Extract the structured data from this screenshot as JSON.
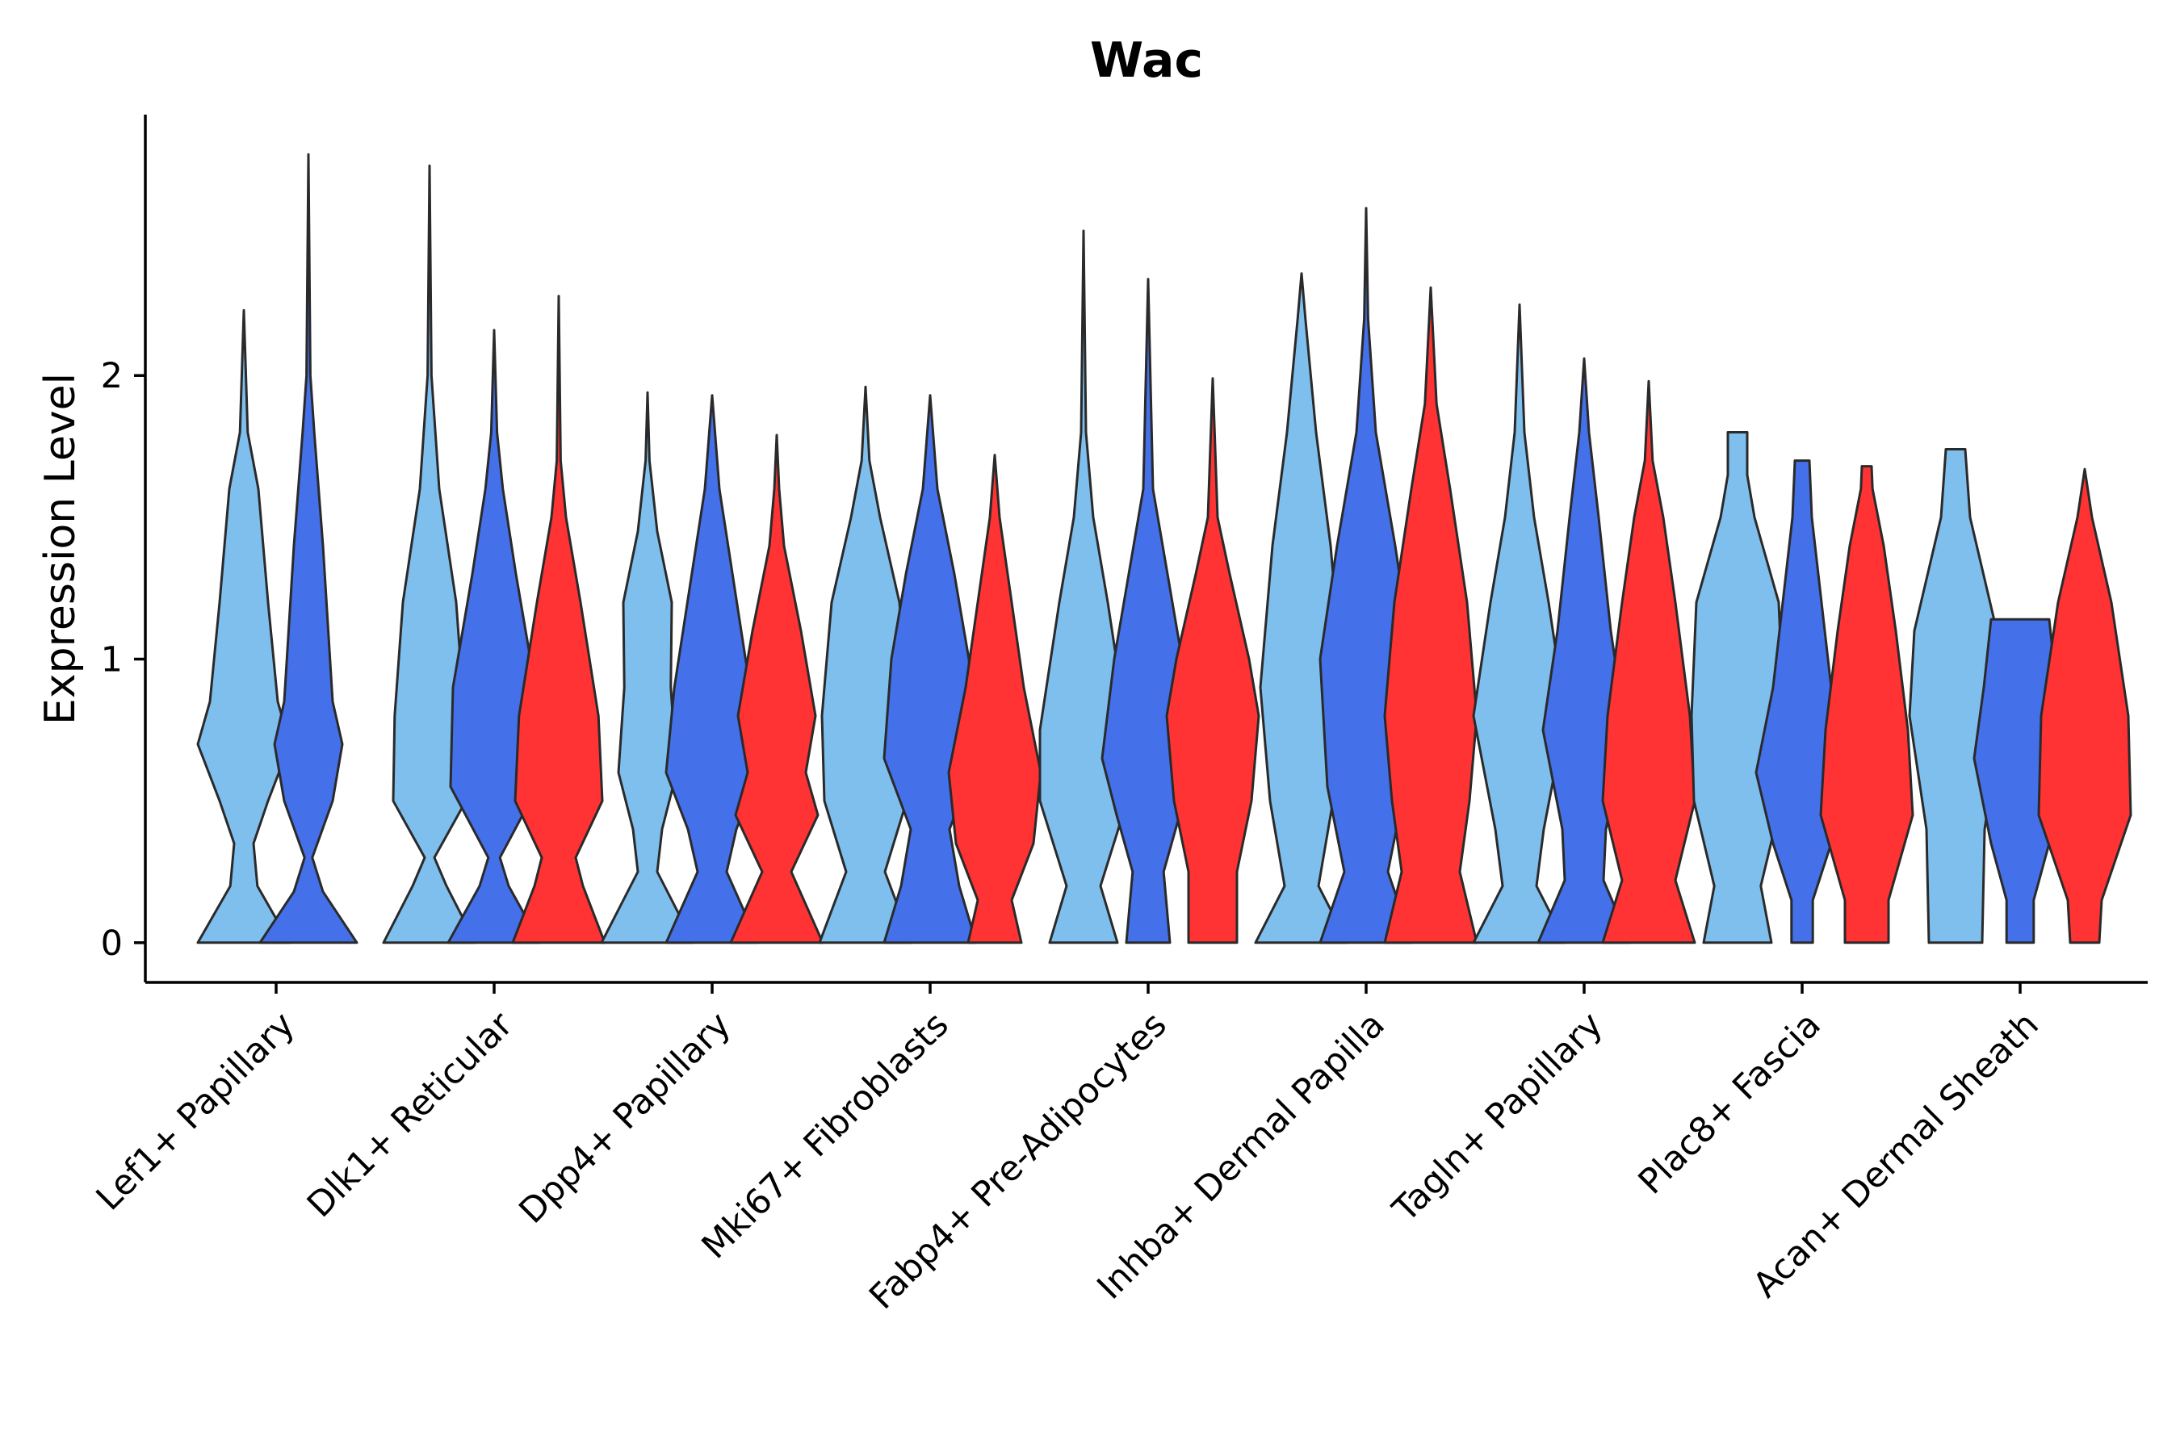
{
  "chart_data": {
    "type": "violin",
    "title": "Wac",
    "xlabel": "",
    "ylabel": "Expression Level",
    "ylim": [
      -0.14,
      2.92
    ],
    "yticks": [
      0,
      1,
      2
    ],
    "grid": false,
    "legend": "none",
    "series": [
      {
        "name": "group 1",
        "color": "#7FBFEE"
      },
      {
        "name": "group 2",
        "color": "#4470EA"
      },
      {
        "name": "group 3",
        "color": "#FF3333"
      }
    ],
    "categories": [
      {
        "label": "Lef1+ Papillary",
        "violins": [
          {
            "series": 0,
            "max": 2.23,
            "d": [
              [
                0,
                0.95
              ],
              [
                0.2,
                0.28
              ],
              [
                0.35,
                0.2
              ],
              [
                0.5,
                0.5
              ],
              [
                0.7,
                0.95
              ],
              [
                0.85,
                0.7
              ],
              [
                1.2,
                0.5
              ],
              [
                1.6,
                0.3
              ],
              [
                1.8,
                0.08
              ],
              [
                2.23,
                0
              ]
            ]
          },
          {
            "series": 1,
            "max": 2.78,
            "d": [
              [
                0,
                1
              ],
              [
                0.18,
                0.3
              ],
              [
                0.3,
                0.08
              ],
              [
                0.5,
                0.5
              ],
              [
                0.7,
                0.7
              ],
              [
                0.85,
                0.5
              ],
              [
                1.4,
                0.3
              ],
              [
                1.8,
                0.12
              ],
              [
                2.0,
                0.04
              ],
              [
                2.78,
                0
              ]
            ]
          }
        ]
      },
      {
        "label": "Dlk1+ Reticular",
        "violins": [
          {
            "series": 0,
            "max": 2.74,
            "d": [
              [
                0,
                0.95
              ],
              [
                0.2,
                0.35
              ],
              [
                0.3,
                0.1
              ],
              [
                0.5,
                0.75
              ],
              [
                0.8,
                0.72
              ],
              [
                1.2,
                0.55
              ],
              [
                1.6,
                0.2
              ],
              [
                2.0,
                0.04
              ],
              [
                2.74,
                0
              ]
            ]
          },
          {
            "series": 1,
            "max": 2.16,
            "d": [
              [
                0,
                0.95
              ],
              [
                0.2,
                0.3
              ],
              [
                0.3,
                0.12
              ],
              [
                0.55,
                0.9
              ],
              [
                0.9,
                0.85
              ],
              [
                1.3,
                0.45
              ],
              [
                1.6,
                0.18
              ],
              [
                1.8,
                0.06
              ],
              [
                2.16,
                0
              ]
            ]
          },
          {
            "series": 2,
            "max": 2.28,
            "d": [
              [
                0,
                0.95
              ],
              [
                0.2,
                0.5
              ],
              [
                0.3,
                0.35
              ],
              [
                0.5,
                0.9
              ],
              [
                0.8,
                0.82
              ],
              [
                1.2,
                0.45
              ],
              [
                1.5,
                0.15
              ],
              [
                1.7,
                0.04
              ],
              [
                2.28,
                0
              ]
            ]
          }
        ]
      },
      {
        "label": "Dpp4+ Papillary",
        "violins": [
          {
            "series": 0,
            "max": 1.94,
            "d": [
              [
                0,
                0.95
              ],
              [
                0.25,
                0.2
              ],
              [
                0.4,
                0.3
              ],
              [
                0.6,
                0.6
              ],
              [
                0.9,
                0.48
              ],
              [
                1.2,
                0.5
              ],
              [
                1.45,
                0.2
              ],
              [
                1.7,
                0.04
              ],
              [
                1.94,
                0
              ]
            ]
          },
          {
            "series": 1,
            "max": 1.93,
            "d": [
              [
                0,
                0.95
              ],
              [
                0.25,
                0.3
              ],
              [
                0.4,
                0.5
              ],
              [
                0.6,
                0.95
              ],
              [
                0.9,
                0.78
              ],
              [
                1.3,
                0.42
              ],
              [
                1.6,
                0.15
              ],
              [
                1.93,
                0
              ]
            ]
          },
          {
            "series": 2,
            "max": 1.79,
            "d": [
              [
                0,
                0.95
              ],
              [
                0.25,
                0.3
              ],
              [
                0.45,
                0.85
              ],
              [
                0.6,
                0.6
              ],
              [
                0.8,
                0.8
              ],
              [
                1.1,
                0.5
              ],
              [
                1.4,
                0.15
              ],
              [
                1.6,
                0.05
              ],
              [
                1.79,
                0
              ]
            ]
          }
        ]
      },
      {
        "label": "Mki67+ Fibroblasts",
        "violins": [
          {
            "series": 0,
            "max": 1.96,
            "d": [
              [
                0,
                0.95
              ],
              [
                0.25,
                0.4
              ],
              [
                0.5,
                0.85
              ],
              [
                0.8,
                0.9
              ],
              [
                1.2,
                0.7
              ],
              [
                1.5,
                0.3
              ],
              [
                1.7,
                0.08
              ],
              [
                1.96,
                0
              ]
            ]
          },
          {
            "series": 1,
            "max": 1.93,
            "d": [
              [
                0,
                0.95
              ],
              [
                0.2,
                0.6
              ],
              [
                0.4,
                0.4
              ],
              [
                0.65,
                0.95
              ],
              [
                1.0,
                0.8
              ],
              [
                1.3,
                0.5
              ],
              [
                1.6,
                0.15
              ],
              [
                1.93,
                0
              ]
            ]
          },
          {
            "series": 2,
            "max": 1.72,
            "d": [
              [
                0,
                0.55
              ],
              [
                0.15,
                0.35
              ],
              [
                0.35,
                0.8
              ],
              [
                0.6,
                0.95
              ],
              [
                0.9,
                0.6
              ],
              [
                1.2,
                0.35
              ],
              [
                1.5,
                0.1
              ],
              [
                1.72,
                0
              ]
            ]
          }
        ]
      },
      {
        "label": "Fabp4+ Pre-Adipocytes",
        "violins": [
          {
            "series": 0,
            "max": 2.51,
            "d": [
              [
                0,
                0.7
              ],
              [
                0.2,
                0.35
              ],
              [
                0.5,
                0.9
              ],
              [
                0.75,
                0.9
              ],
              [
                1.2,
                0.5
              ],
              [
                1.5,
                0.2
              ],
              [
                1.8,
                0.05
              ],
              [
                2.51,
                0
              ]
            ]
          },
          {
            "series": 1,
            "max": 2.34,
            "d": [
              [
                0,
                0.45
              ],
              [
                0.25,
                0.32
              ],
              [
                0.45,
                0.65
              ],
              [
                0.65,
                0.95
              ],
              [
                1.0,
                0.7
              ],
              [
                1.3,
                0.4
              ],
              [
                1.6,
                0.1
              ],
              [
                2.34,
                0
              ]
            ]
          },
          {
            "series": 2,
            "max": 1.99,
            "d": [
              [
                0,
                0.5
              ],
              [
                0.25,
                0.5
              ],
              [
                0.5,
                0.8
              ],
              [
                0.8,
                0.95
              ],
              [
                1.0,
                0.75
              ],
              [
                1.3,
                0.35
              ],
              [
                1.5,
                0.1
              ],
              [
                1.99,
                0
              ]
            ]
          }
        ]
      },
      {
        "label": "Inhba+ Dermal Papilla",
        "violins": [
          {
            "series": 0,
            "max": 2.36,
            "d": [
              [
                0,
                0.95
              ],
              [
                0.2,
                0.35
              ],
              [
                0.5,
                0.65
              ],
              [
                0.9,
                0.85
              ],
              [
                1.4,
                0.6
              ],
              [
                1.8,
                0.3
              ],
              [
                2.2,
                0.08
              ],
              [
                2.36,
                0
              ]
            ]
          },
          {
            "series": 1,
            "max": 2.59,
            "d": [
              [
                0,
                0.95
              ],
              [
                0.25,
                0.45
              ],
              [
                0.55,
                0.8
              ],
              [
                1.0,
                0.95
              ],
              [
                1.4,
                0.6
              ],
              [
                1.8,
                0.2
              ],
              [
                2.2,
                0.04
              ],
              [
                2.59,
                0
              ]
            ]
          },
          {
            "series": 2,
            "max": 2.31,
            "d": [
              [
                0,
                0.95
              ],
              [
                0.25,
                0.6
              ],
              [
                0.5,
                0.8
              ],
              [
                0.8,
                0.95
              ],
              [
                1.2,
                0.75
              ],
              [
                1.6,
                0.4
              ],
              [
                1.9,
                0.12
              ],
              [
                2.31,
                0
              ]
            ]
          }
        ]
      },
      {
        "label": "Tagln+ Papillary",
        "violins": [
          {
            "series": 0,
            "max": 2.25,
            "d": [
              [
                0,
                0.95
              ],
              [
                0.2,
                0.35
              ],
              [
                0.4,
                0.5
              ],
              [
                0.8,
                0.95
              ],
              [
                1.2,
                0.6
              ],
              [
                1.5,
                0.3
              ],
              [
                1.8,
                0.1
              ],
              [
                2.25,
                0
              ]
            ]
          },
          {
            "series": 1,
            "max": 2.06,
            "d": [
              [
                0,
                0.95
              ],
              [
                0.22,
                0.4
              ],
              [
                0.4,
                0.45
              ],
              [
                0.75,
                0.85
              ],
              [
                1.1,
                0.55
              ],
              [
                1.5,
                0.3
              ],
              [
                1.8,
                0.1
              ],
              [
                2.06,
                0
              ]
            ]
          },
          {
            "series": 2,
            "max": 1.98,
            "d": [
              [
                0,
                0.95
              ],
              [
                0.22,
                0.55
              ],
              [
                0.5,
                0.95
              ],
              [
                0.8,
                0.85
              ],
              [
                1.2,
                0.55
              ],
              [
                1.5,
                0.3
              ],
              [
                1.7,
                0.08
              ],
              [
                1.98,
                0
              ]
            ]
          }
        ]
      },
      {
        "label": "Plac8+ Fascia",
        "violins": [
          {
            "series": 0,
            "max": 1.8,
            "d": [
              [
                0,
                0.7
              ],
              [
                0.2,
                0.48
              ],
              [
                0.5,
                0.9
              ],
              [
                0.8,
                0.95
              ],
              [
                1.2,
                0.85
              ],
              [
                1.5,
                0.35
              ],
              [
                1.65,
                0.2
              ],
              [
                1.8,
                0.2
              ]
            ]
          },
          {
            "series": 1,
            "max": 1.7,
            "d": [
              [
                0,
                0.22
              ],
              [
                0.15,
                0.22
              ],
              [
                0.35,
                0.6
              ],
              [
                0.6,
                0.95
              ],
              [
                0.9,
                0.6
              ],
              [
                1.2,
                0.4
              ],
              [
                1.5,
                0.2
              ],
              [
                1.7,
                0.15
              ]
            ]
          },
          {
            "series": 2,
            "max": 1.68,
            "d": [
              [
                0,
                0.45
              ],
              [
                0.15,
                0.45
              ],
              [
                0.45,
                0.95
              ],
              [
                0.75,
                0.85
              ],
              [
                1.1,
                0.6
              ],
              [
                1.4,
                0.35
              ],
              [
                1.6,
                0.12
              ],
              [
                1.68,
                0.1
              ]
            ]
          }
        ]
      },
      {
        "label": "Acan+ Dermal Sheath",
        "violins": [
          {
            "series": 0,
            "max": 1.74,
            "d": [
              [
                0,
                0.55
              ],
              [
                0.4,
                0.6
              ],
              [
                0.8,
                0.95
              ],
              [
                1.1,
                0.85
              ],
              [
                1.5,
                0.3
              ],
              [
                1.74,
                0.2
              ]
            ]
          },
          {
            "series": 1,
            "max": 1.14,
            "d": [
              [
                0,
                0.28
              ],
              [
                0.15,
                0.28
              ],
              [
                0.35,
                0.6
              ],
              [
                0.65,
                0.95
              ],
              [
                0.9,
                0.75
              ],
              [
                1.14,
                0.6
              ]
            ]
          },
          {
            "series": 2,
            "max": 1.67,
            "d": [
              [
                0,
                0.3
              ],
              [
                0.15,
                0.35
              ],
              [
                0.45,
                0.95
              ],
              [
                0.8,
                0.9
              ],
              [
                1.2,
                0.55
              ],
              [
                1.5,
                0.15
              ],
              [
                1.67,
                0
              ]
            ]
          }
        ]
      }
    ]
  }
}
